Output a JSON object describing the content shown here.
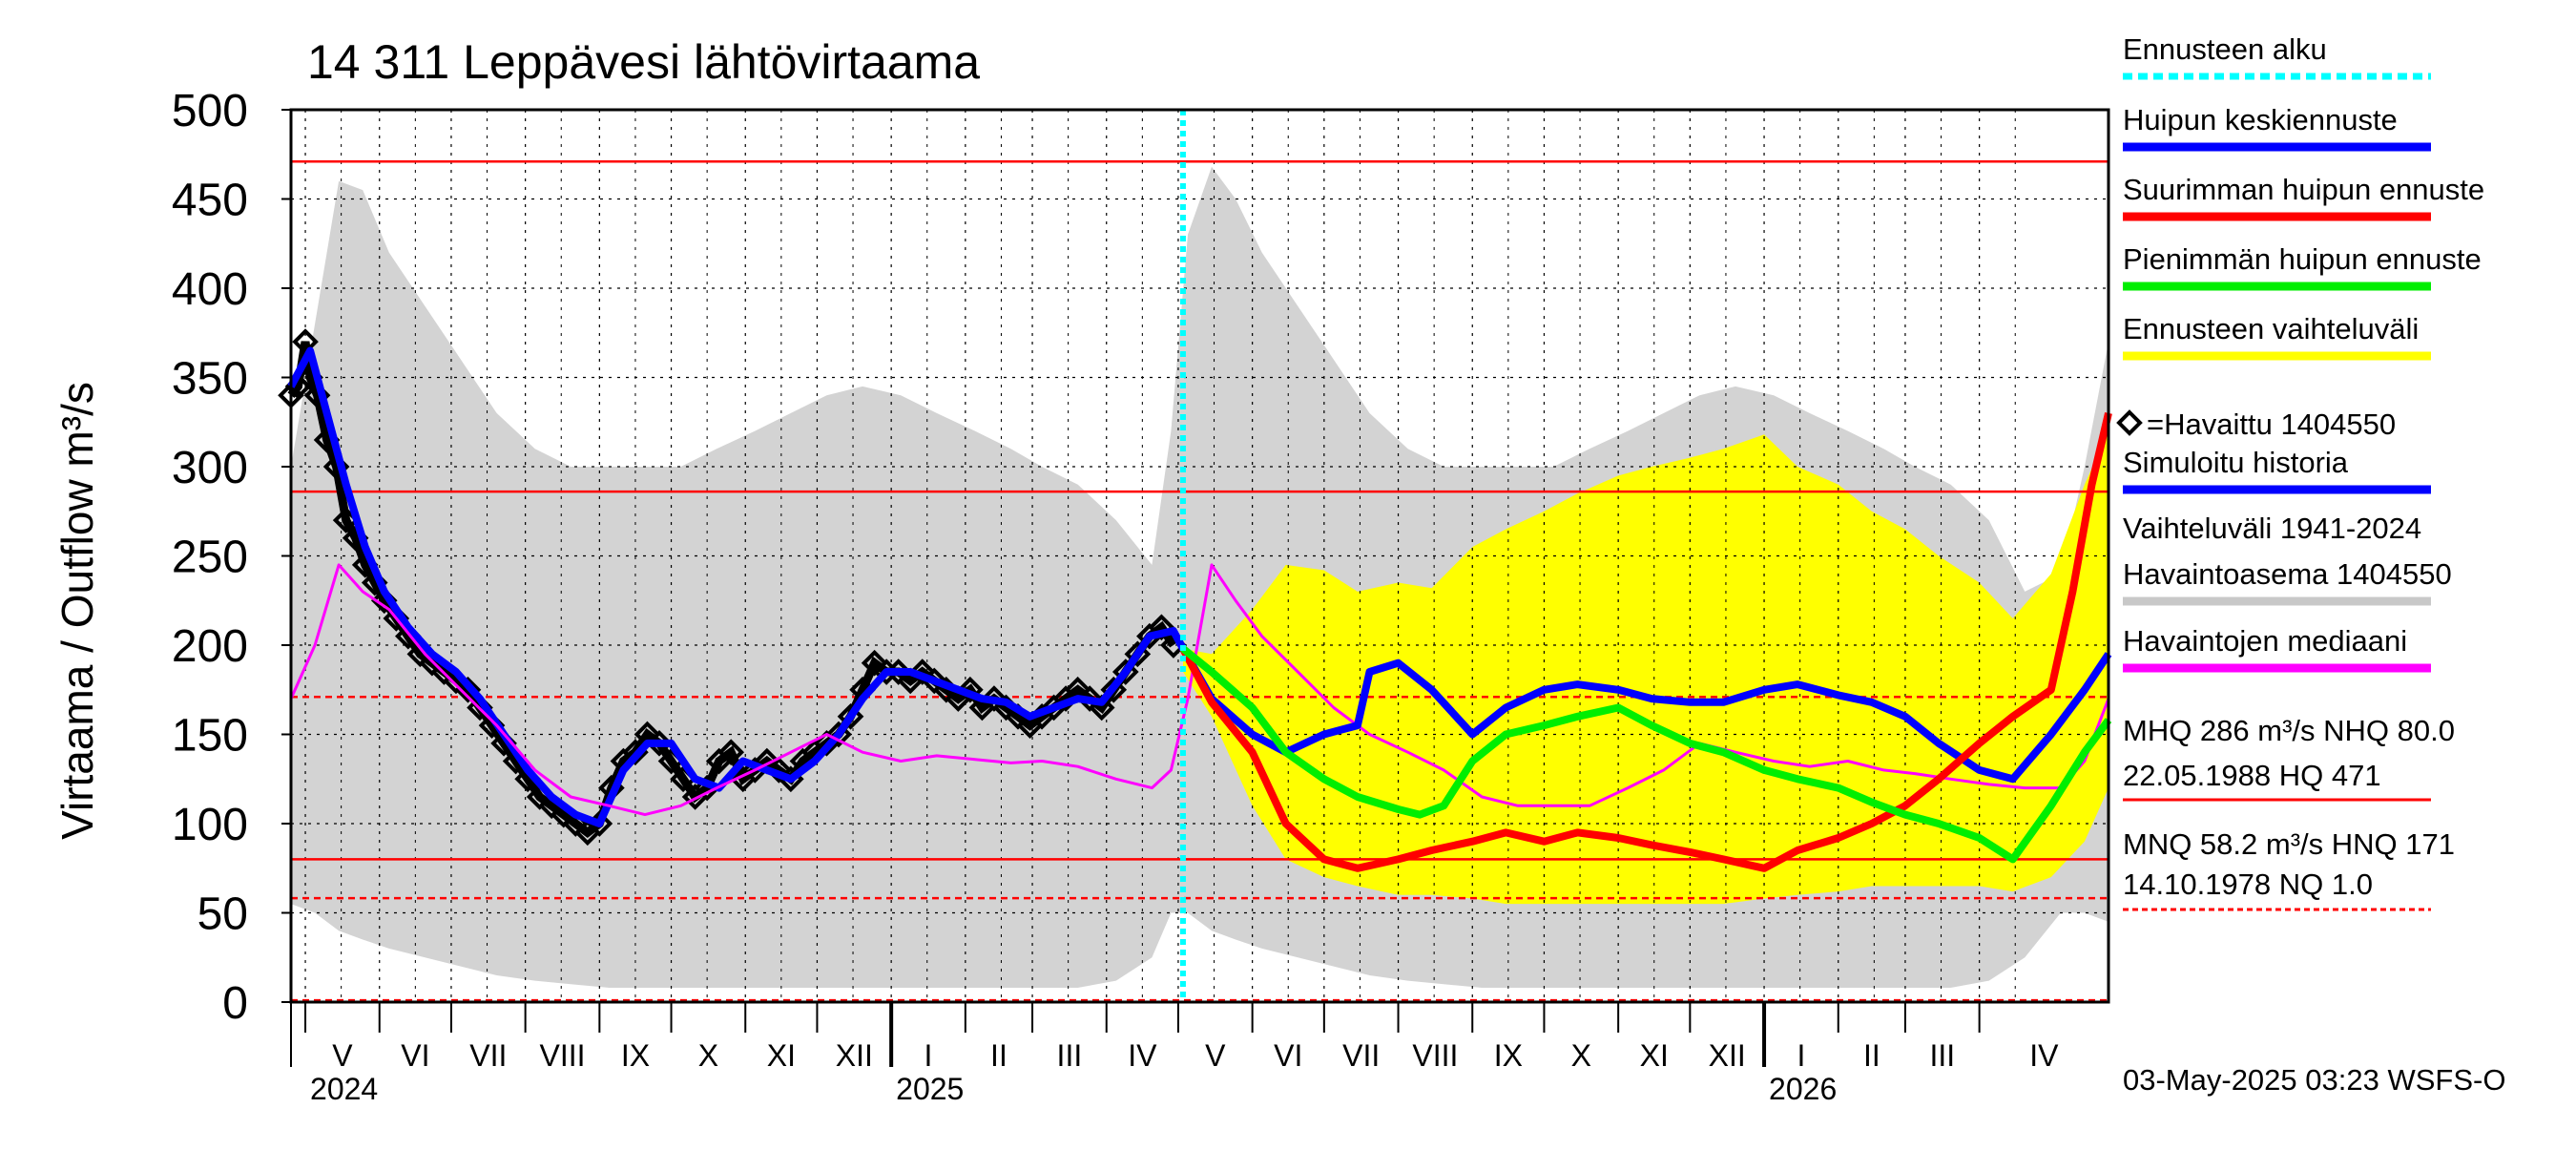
{
  "chart_data": {
    "type": "line",
    "title": "14 311 Leppävesi lähtövirtaama",
    "ylabel": "Virtaama / Outflow   m³/s",
    "ylim": [
      0,
      500
    ],
    "xlim": [
      "2024-04-25",
      "2026-05-25"
    ],
    "grid": true,
    "legend_position": "right",
    "y_ticks": [
      "0",
      "50",
      "100",
      "150",
      "200",
      "250",
      "300",
      "350",
      "400",
      "450",
      "500"
    ],
    "y_tick_values": [
      0,
      50,
      100,
      150,
      200,
      250,
      300,
      350,
      400,
      450,
      500
    ],
    "month_ticks": [
      {
        "label": "V",
        "date": "2024-05-01"
      },
      {
        "label": "VI",
        "date": "2024-06-01"
      },
      {
        "label": "VII",
        "date": "2024-07-01"
      },
      {
        "label": "VIII",
        "date": "2024-08-01"
      },
      {
        "label": "IX",
        "date": "2024-09-01"
      },
      {
        "label": "X",
        "date": "2024-10-01"
      },
      {
        "label": "XI",
        "date": "2024-11-01"
      },
      {
        "label": "XII",
        "date": "2024-12-01"
      },
      {
        "label": "I",
        "date": "2025-01-01"
      },
      {
        "label": "II",
        "date": "2025-02-01"
      },
      {
        "label": "III",
        "date": "2025-03-01"
      },
      {
        "label": "IV",
        "date": "2025-04-01"
      },
      {
        "label": "V",
        "date": "2025-05-01"
      },
      {
        "label": "VI",
        "date": "2025-06-01"
      },
      {
        "label": "VII",
        "date": "2025-07-01"
      },
      {
        "label": "VIII",
        "date": "2025-08-01"
      },
      {
        "label": "IX",
        "date": "2025-09-01"
      },
      {
        "label": "X",
        "date": "2025-10-01"
      },
      {
        "label": "XI",
        "date": "2025-11-01"
      },
      {
        "label": "XII",
        "date": "2025-12-01"
      },
      {
        "label": "I",
        "date": "2026-01-01"
      },
      {
        "label": "II",
        "date": "2026-02-01"
      },
      {
        "label": "III",
        "date": "2026-03-01"
      },
      {
        "label": "IV",
        "date": "2026-04-01"
      }
    ],
    "year_ticks": [
      {
        "label": "2024",
        "date": "2024-05-01"
      },
      {
        "label": "2025",
        "date": "2025-01-01"
      },
      {
        "label": "2026",
        "date": "2026-01-01"
      }
    ],
    "forecast_start": "2025-05-03",
    "reference_lines": [
      {
        "name": "HQ",
        "value": 471,
        "color": "#ff0000",
        "style": "solid"
      },
      {
        "name": "MHQ",
        "value": 286,
        "color": "#ff0000",
        "style": "solid"
      },
      {
        "name": "HNQ",
        "value": 171,
        "color": "#ff0000",
        "style": "dashed"
      },
      {
        "name": "NHQ",
        "value": 80,
        "color": "#ff0000",
        "style": "solid"
      },
      {
        "name": "MNQ",
        "value": 58.2,
        "color": "#ff0000",
        "style": "dashed"
      },
      {
        "name": "NQ",
        "value": 1,
        "color": "#ff0000",
        "style": "dashed"
      }
    ],
    "variation_band": {
      "name": "Vaihteluväli 1941-2024 Havaintoasema 1404550",
      "color": "#d3d3d3",
      "x": [
        "2024-04-25",
        "2024-05-05",
        "2024-05-15",
        "2024-05-25",
        "2024-06-05",
        "2024-06-20",
        "2024-07-05",
        "2024-07-20",
        "2024-08-05",
        "2024-08-20",
        "2024-09-05",
        "2024-09-20",
        "2024-10-05",
        "2024-10-20",
        "2024-11-05",
        "2024-11-20",
        "2024-12-05",
        "2024-12-20",
        "2025-01-05",
        "2025-01-20",
        "2025-02-05",
        "2025-02-20",
        "2025-03-05",
        "2025-03-20",
        "2025-04-05",
        "2025-04-20",
        "2025-04-28",
        "2025-05-05",
        "2025-05-15",
        "2025-05-25",
        "2025-06-05",
        "2025-06-20",
        "2025-07-05",
        "2025-07-20",
        "2025-08-05",
        "2025-08-20",
        "2025-09-05",
        "2025-09-20",
        "2025-10-05",
        "2025-10-20",
        "2025-11-05",
        "2025-11-20",
        "2025-12-05",
        "2025-12-20",
        "2026-01-05",
        "2026-01-20",
        "2026-02-05",
        "2026-02-20",
        "2026-03-05",
        "2026-03-20",
        "2026-04-05",
        "2026-04-20",
        "2026-05-05",
        "2026-05-15",
        "2026-05-25"
      ],
      "upper": [
        300,
        380,
        460,
        455,
        420,
        390,
        360,
        330,
        310,
        300,
        300,
        300,
        300,
        310,
        320,
        330,
        340,
        345,
        340,
        330,
        320,
        310,
        300,
        290,
        270,
        245,
        320,
        430,
        468,
        450,
        420,
        390,
        360,
        330,
        310,
        300,
        300,
        300,
        300,
        310,
        320,
        330,
        340,
        345,
        340,
        330,
        320,
        310,
        300,
        290,
        270,
        230,
        240,
        300,
        370
      ],
      "lower": [
        55,
        50,
        40,
        35,
        30,
        25,
        20,
        15,
        12,
        10,
        8,
        8,
        8,
        8,
        8,
        8,
        8,
        8,
        8,
        8,
        8,
        8,
        8,
        8,
        12,
        25,
        50,
        50,
        40,
        35,
        30,
        25,
        20,
        15,
        12,
        10,
        8,
        8,
        8,
        8,
        8,
        8,
        8,
        8,
        8,
        8,
        8,
        8,
        8,
        8,
        12,
        25,
        50,
        50,
        45
      ]
    },
    "forecast_band": {
      "name": "Ennusteen vaihteluväli",
      "color": "#ffff00",
      "x": [
        "2025-05-03",
        "2025-05-15",
        "2025-06-01",
        "2025-06-15",
        "2025-07-01",
        "2025-07-15",
        "2025-08-01",
        "2025-08-15",
        "2025-09-01",
        "2025-09-15",
        "2025-10-01",
        "2025-10-15",
        "2025-11-01",
        "2025-11-15",
        "2025-12-01",
        "2025-12-15",
        "2026-01-01",
        "2026-01-15",
        "2026-02-01",
        "2026-02-15",
        "2026-03-01",
        "2026-03-15",
        "2026-04-01",
        "2026-04-15",
        "2026-05-01",
        "2026-05-15",
        "2026-05-25"
      ],
      "upper": [
        198,
        195,
        220,
        245,
        242,
        230,
        235,
        232,
        255,
        265,
        275,
        285,
        295,
        300,
        305,
        310,
        318,
        300,
        290,
        275,
        265,
        250,
        235,
        215,
        240,
        290,
        320
      ],
      "lower": [
        185,
        160,
        110,
        80,
        70,
        65,
        60,
        60,
        58,
        55,
        55,
        55,
        55,
        55,
        55,
        55,
        58,
        60,
        62,
        65,
        65,
        65,
        65,
        62,
        70,
        90,
        120
      ]
    },
    "series": [
      {
        "name": "Havaitut",
        "kind": "observed-markers",
        "color": "#000000",
        "x": [
          "2024-04-25",
          "2024-04-28",
          "2024-05-01",
          "2024-05-03",
          "2024-05-06",
          "2024-05-10",
          "2024-05-14",
          "2024-05-18",
          "2024-05-22",
          "2024-05-26",
          "2024-05-30",
          "2024-06-03",
          "2024-06-08",
          "2024-06-13",
          "2024-06-18",
          "2024-06-23",
          "2024-06-28",
          "2024-07-03",
          "2024-07-08",
          "2024-07-13",
          "2024-07-18",
          "2024-07-23",
          "2024-07-28",
          "2024-08-02",
          "2024-08-07",
          "2024-08-12",
          "2024-08-17",
          "2024-08-22",
          "2024-08-27",
          "2024-09-01",
          "2024-09-06",
          "2024-09-11",
          "2024-09-16",
          "2024-09-21",
          "2024-09-26",
          "2024-10-01",
          "2024-10-06",
          "2024-10-11",
          "2024-10-16",
          "2024-10-21",
          "2024-10-26",
          "2024-10-31",
          "2024-11-05",
          "2024-11-10",
          "2024-11-15",
          "2024-11-20",
          "2024-11-25",
          "2024-11-30",
          "2024-12-05",
          "2024-12-10",
          "2024-12-15",
          "2024-12-20",
          "2024-12-25",
          "2024-12-30",
          "2025-01-04",
          "2025-01-09",
          "2025-01-14",
          "2025-01-19",
          "2025-01-24",
          "2025-01-29",
          "2025-02-03",
          "2025-02-08",
          "2025-02-13",
          "2025-02-18",
          "2025-02-23",
          "2025-02-28",
          "2025-03-05",
          "2025-03-10",
          "2025-03-15",
          "2025-03-20",
          "2025-03-25",
          "2025-03-30",
          "2025-04-04",
          "2025-04-09",
          "2025-04-14",
          "2025-04-19",
          "2025-04-24",
          "2025-04-29"
        ],
        "values": [
          340,
          345,
          370,
          350,
          340,
          315,
          300,
          270,
          260,
          245,
          235,
          225,
          215,
          205,
          195,
          190,
          185,
          180,
          175,
          165,
          155,
          145,
          135,
          125,
          115,
          110,
          105,
          100,
          95,
          100,
          120,
          135,
          140,
          150,
          145,
          135,
          125,
          115,
          120,
          135,
          140,
          125,
          130,
          135,
          130,
          125,
          135,
          140,
          145,
          150,
          160,
          175,
          190,
          185,
          185,
          180,
          185,
          180,
          175,
          170,
          175,
          165,
          170,
          165,
          160,
          155,
          160,
          165,
          170,
          175,
          170,
          165,
          175,
          185,
          195,
          205,
          210,
          200
        ]
      },
      {
        "name": "Simuloitu historia",
        "color": "#0000ff",
        "x": [
          "2024-04-25",
          "2024-05-03",
          "2024-05-10",
          "2024-05-18",
          "2024-05-26",
          "2024-06-03",
          "2024-06-13",
          "2024-06-23",
          "2024-07-03",
          "2024-07-13",
          "2024-07-23",
          "2024-08-02",
          "2024-08-12",
          "2024-08-22",
          "2024-09-01",
          "2024-09-11",
          "2024-09-21",
          "2024-10-01",
          "2024-10-11",
          "2024-10-21",
          "2024-10-31",
          "2024-11-10",
          "2024-11-20",
          "2024-11-30",
          "2024-12-10",
          "2024-12-20",
          "2024-12-30",
          "2025-01-09",
          "2025-01-19",
          "2025-01-29",
          "2025-02-08",
          "2025-02-18",
          "2025-02-28",
          "2025-03-10",
          "2025-03-20",
          "2025-03-30",
          "2025-04-09",
          "2025-04-19",
          "2025-04-29",
          "2025-05-03"
        ],
        "values": [
          345,
          365,
          330,
          290,
          255,
          230,
          210,
          195,
          185,
          170,
          150,
          130,
          115,
          105,
          100,
          130,
          145,
          145,
          125,
          120,
          135,
          130,
          125,
          135,
          150,
          170,
          185,
          185,
          180,
          175,
          170,
          168,
          160,
          165,
          170,
          168,
          185,
          205,
          208,
          198
        ]
      },
      {
        "name": "Havaintojen mediaani",
        "color": "#ff00ff",
        "x": [
          "2024-04-25",
          "2024-05-05",
          "2024-05-15",
          "2024-05-25",
          "2024-06-05",
          "2024-06-20",
          "2024-07-05",
          "2024-07-20",
          "2024-08-05",
          "2024-08-20",
          "2024-09-05",
          "2024-09-20",
          "2024-10-05",
          "2024-10-20",
          "2024-11-05",
          "2024-11-20",
          "2024-12-05",
          "2024-12-20",
          "2025-01-05",
          "2025-01-20",
          "2025-02-05",
          "2025-02-20",
          "2025-03-05",
          "2025-03-20",
          "2025-04-05",
          "2025-04-20",
          "2025-04-28",
          "2025-05-05",
          "2025-05-15",
          "2025-05-25",
          "2025-06-05",
          "2025-06-20",
          "2025-07-05",
          "2025-07-20",
          "2025-08-05",
          "2025-08-20",
          "2025-09-05",
          "2025-09-20",
          "2025-10-05",
          "2025-10-20",
          "2025-11-05",
          "2025-11-20",
          "2025-12-05",
          "2025-12-20",
          "2026-01-05",
          "2026-01-20",
          "2026-02-05",
          "2026-02-20",
          "2026-03-05",
          "2026-03-20",
          "2026-04-05",
          "2026-04-20",
          "2026-05-05",
          "2026-05-15",
          "2026-05-25"
        ],
        "values": [
          170,
          200,
          245,
          230,
          220,
          195,
          175,
          155,
          130,
          115,
          110,
          105,
          110,
          120,
          130,
          140,
          150,
          140,
          135,
          138,
          136,
          134,
          135,
          132,
          125,
          120,
          130,
          170,
          245,
          225,
          205,
          185,
          165,
          150,
          140,
          130,
          115,
          110,
          110,
          110,
          120,
          130,
          145,
          140,
          135,
          132,
          135,
          130,
          128,
          125,
          122,
          120,
          120,
          135,
          170
        ]
      },
      {
        "name": "Huipun keskiennuste",
        "color": "#0000ff",
        "x": [
          "2025-05-03",
          "2025-05-15",
          "2025-06-01",
          "2025-06-15",
          "2025-07-01",
          "2025-07-15",
          "2025-07-20",
          "2025-08-01",
          "2025-08-15",
          "2025-09-01",
          "2025-09-15",
          "2025-10-01",
          "2025-10-15",
          "2025-11-01",
          "2025-11-15",
          "2025-12-01",
          "2025-12-15",
          "2026-01-01",
          "2026-01-15",
          "2026-02-01",
          "2026-02-15",
          "2026-03-01",
          "2026-03-15",
          "2026-04-01",
          "2026-04-15",
          "2026-05-01",
          "2026-05-15",
          "2026-05-25"
        ],
        "values": [
          198,
          170,
          150,
          140,
          150,
          155,
          185,
          190,
          175,
          150,
          165,
          175,
          178,
          175,
          170,
          168,
          168,
          175,
          178,
          172,
          168,
          160,
          145,
          130,
          125,
          150,
          175,
          195
        ]
      },
      {
        "name": "Suurimman huipun ennuste",
        "color": "#ff0000",
        "x": [
          "2025-05-03",
          "2025-05-15",
          "2025-06-01",
          "2025-06-15",
          "2025-07-01",
          "2025-07-15",
          "2025-08-01",
          "2025-08-15",
          "2025-09-01",
          "2025-09-15",
          "2025-10-01",
          "2025-10-15",
          "2025-11-01",
          "2025-11-15",
          "2025-12-01",
          "2025-12-15",
          "2026-01-01",
          "2026-01-15",
          "2026-02-01",
          "2026-02-15",
          "2026-03-01",
          "2026-03-15",
          "2026-04-01",
          "2026-04-15",
          "2026-05-01",
          "2026-05-10",
          "2026-05-18",
          "2026-05-25"
        ],
        "values": [
          198,
          168,
          140,
          100,
          80,
          75,
          80,
          85,
          90,
          95,
          90,
          95,
          92,
          88,
          84,
          80,
          75,
          85,
          92,
          100,
          110,
          125,
          145,
          160,
          175,
          230,
          290,
          330
        ]
      },
      {
        "name": "Pienimmän huipun ennuste",
        "color": "#00ee00",
        "x": [
          "2025-05-03",
          "2025-05-15",
          "2025-06-01",
          "2025-06-15",
          "2025-07-01",
          "2025-07-15",
          "2025-08-01",
          "2025-08-10",
          "2025-08-20",
          "2025-09-01",
          "2025-09-15",
          "2025-10-01",
          "2025-10-15",
          "2025-11-01",
          "2025-11-15",
          "2025-12-01",
          "2025-12-15",
          "2026-01-01",
          "2026-01-15",
          "2026-02-01",
          "2026-02-15",
          "2026-03-01",
          "2026-03-15",
          "2026-04-01",
          "2026-04-15",
          "2026-05-01",
          "2026-05-15",
          "2026-05-25"
        ],
        "values": [
          198,
          185,
          165,
          140,
          125,
          115,
          108,
          105,
          110,
          135,
          150,
          155,
          160,
          165,
          155,
          145,
          140,
          130,
          125,
          120,
          112,
          105,
          100,
          92,
          80,
          110,
          140,
          158
        ]
      }
    ],
    "legend": [
      {
        "label": "Ennusteen alku",
        "color": "#00ffff",
        "style": "dotted"
      },
      {
        "label": "Huipun keskiennuste",
        "color": "#0000ff",
        "style": "line"
      },
      {
        "label": "Suurimman huipun ennuste",
        "color": "#ff0000",
        "style": "line"
      },
      {
        "label": "Pienimmän huipun ennuste",
        "color": "#00ee00",
        "style": "line"
      },
      {
        "label": "Ennusteen vaihteluväli",
        "color": "#ffff00",
        "style": "line"
      },
      {
        "label": "=Havaittu 1404550",
        "color": "#000000",
        "style": "marker"
      },
      {
        "label": "Simuloitu historia",
        "color": "#0000ff",
        "style": "line"
      },
      {
        "label": "Vaihteluväli 1941-2024",
        "label2": " Havaintoasema 1404550",
        "color": "#c8c8c8",
        "style": "line"
      },
      {
        "label": "Havaintojen mediaani",
        "color": "#ff00ff",
        "style": "line"
      }
    ],
    "stats_text": {
      "line1": "MHQ  286 m³/s NHQ 80.0",
      "line2": "22.05.1988 HQ  471",
      "line3": "MNQ 58.2 m³/s HNQ  171",
      "line4": "14.10.1978 NQ  1.0"
    },
    "footer": "03-May-2025 03:23 WSFS-O"
  }
}
